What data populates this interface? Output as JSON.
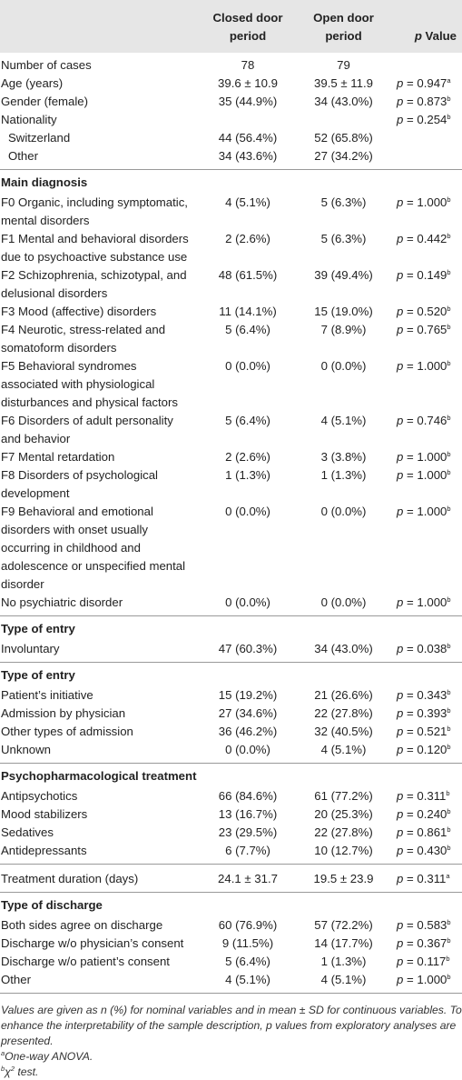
{
  "header": {
    "col1": "",
    "col2": "Closed door period",
    "col3": "Open door period",
    "col4_p": "p",
    "col4_rest": " Value"
  },
  "rows": [
    {
      "label": "Number of cases",
      "c1": "78",
      "c2": "79",
      "pv": "",
      "sup": ""
    },
    {
      "label": "Age (years)",
      "c1": "39.6 ± 10.9",
      "c2": "39.5 ± 11.9",
      "pv": " = 0.947",
      "sup": "a"
    },
    {
      "label": "Gender (female)",
      "c1": "35 (44.9%)",
      "c2": "34 (43.0%)",
      "pv": " = 0.873",
      "sup": "b"
    },
    {
      "label": "Nationality",
      "c1": "",
      "c2": "",
      "pv": " = 0.254",
      "sup": "b"
    },
    {
      "label": "Switzerland",
      "c1": "44 (56.4%)",
      "c2": "52 (65.8%)",
      "pv": "",
      "sup": ""
    },
    {
      "label": "Other",
      "c1": "34 (43.6%)",
      "c2": "27 (34.2%)",
      "pv": "",
      "sup": ""
    },
    {
      "label": "Main diagnosis"
    },
    {
      "label": "F0 Organic, including symptomatic, mental disorders",
      "c1": "4 (5.1%)",
      "c2": "5 (6.3%)",
      "pv": " = 1.000",
      "sup": "b"
    },
    {
      "label": "F1 Mental and behavioral disorders due to psychoactive substance use",
      "c1": "2 (2.6%)",
      "c2": "5 (6.3%)",
      "pv": " = 0.442",
      "sup": "b"
    },
    {
      "label": "F2 Schizophrenia, schizotypal, and delusional disorders",
      "c1": "48 (61.5%)",
      "c2": "39 (49.4%)",
      "pv": " = 0.149",
      "sup": "b"
    },
    {
      "label": "F3 Mood (affective) disorders",
      "c1": "11 (14.1%)",
      "c2": "15 (19.0%)",
      "pv": " = 0.520",
      "sup": "b"
    },
    {
      "label": "F4 Neurotic, stress-related and somatoform disorders",
      "c1": "5 (6.4%)",
      "c2": "7 (8.9%)",
      "pv": " = 0.765",
      "sup": "b"
    },
    {
      "label": "F5 Behavioral syndromes associated with physiological disturbances and physical factors",
      "c1": "0 (0.0%)",
      "c2": "0 (0.0%)",
      "pv": " = 1.000",
      "sup": "b"
    },
    {
      "label": "F6 Disorders of adult personality and behavior",
      "c1": "5 (6.4%)",
      "c2": "4 (5.1%)",
      "pv": " = 0.746",
      "sup": "b"
    },
    {
      "label": "F7 Mental retardation",
      "c1": "2 (2.6%)",
      "c2": "3 (3.8%)",
      "pv": " = 1.000",
      "sup": "b"
    },
    {
      "label": "F8 Disorders of psychological development",
      "c1": "1 (1.3%)",
      "c2": "1 (1.3%)",
      "pv": " = 1.000",
      "sup": "b"
    },
    {
      "label": "F9 Behavioral and emotional disorders with onset usually occurring in childhood and adolescence or unspecified mental disorder",
      "c1": "0 (0.0%)",
      "c2": "0 (0.0%)",
      "pv": " = 1.000",
      "sup": "b"
    },
    {
      "label": "No psychiatric disorder",
      "c1": "0 (0.0%)",
      "c2": "0 (0.0%)",
      "pv": " = 1.000",
      "sup": "b"
    },
    {
      "label": "Type of entry"
    },
    {
      "label": "Involuntary",
      "c1": "47 (60.3%)",
      "c2": "34 (43.0%)",
      "pv": " = 0.038",
      "sup": "b"
    },
    {
      "label": "Type of entry"
    },
    {
      "label": "Patient’s initiative",
      "c1": "15 (19.2%)",
      "c2": "21 (26.6%)",
      "pv": " = 0.343",
      "sup": "b"
    },
    {
      "label": "Admission by physician",
      "c1": "27 (34.6%)",
      "c2": "22 (27.8%)",
      "pv": " = 0.393",
      "sup": "b"
    },
    {
      "label": "Other types of admission",
      "c1": "36 (46.2%)",
      "c2": "32 (40.5%)",
      "pv": " = 0.521",
      "sup": "b"
    },
    {
      "label": "Unknown",
      "c1": "0 (0.0%)",
      "c2": "4 (5.1%)",
      "pv": " = 0.120",
      "sup": "b"
    },
    {
      "label": "Psychopharmacological treatment"
    },
    {
      "label": "Antipsychotics",
      "c1": "66 (84.6%)",
      "c2": "61 (77.2%)",
      "pv": " = 0.311",
      "sup": "b"
    },
    {
      "label": "Mood stabilizers",
      "c1": "13 (16.7%)",
      "c2": "20 (25.3%)",
      "pv": " = 0.240",
      "sup": "b"
    },
    {
      "label": "Sedatives",
      "c1": "23 (29.5%)",
      "c2": "22 (27.8%)",
      "pv": " = 0.861",
      "sup": "b"
    },
    {
      "label": "Antidepressants",
      "c1": "6 (7.7%)",
      "c2": "10 (12.7%)",
      "pv": " = 0.430",
      "sup": "b"
    },
    {
      "label": "Treatment duration (days)",
      "c1": "24.1 ± 31.7",
      "c2": "19.5 ± 23.9",
      "pv": " = 0.311",
      "sup": "a"
    },
    {
      "label": "Type of discharge"
    },
    {
      "label": "Both sides agree on discharge",
      "c1": "60 (76.9%)",
      "c2": "57 (72.2%)",
      "pv": " = 0.583",
      "sup": "b"
    },
    {
      "label": "Discharge w/o physician’s consent",
      "c1": "9 (11.5%)",
      "c2": "14 (17.7%)",
      "pv": " = 0.367",
      "sup": "b"
    },
    {
      "label": "Discharge w/o patient’s consent",
      "c1": "5 (6.4%)",
      "c2": "1 (1.3%)",
      "pv": " = 0.117",
      "sup": "b"
    },
    {
      "label": "Other",
      "c1": "4 (5.1%)",
      "c2": "4 (5.1%)",
      "pv": " = 1.000",
      "sup": "b"
    }
  ],
  "p_letter": "p",
  "notes": {
    "main": "Values are given as n (%) for nominal variables and in mean ± SD for continuous variables. To enhance the interpretability of the sample description, p values from exploratory analyses are presented.",
    "a_mark": "a",
    "a_text": "One-way ANOVA.",
    "b_mark": "b",
    "b_chi": "χ",
    "b_sq": "2",
    "b_text": " test."
  }
}
